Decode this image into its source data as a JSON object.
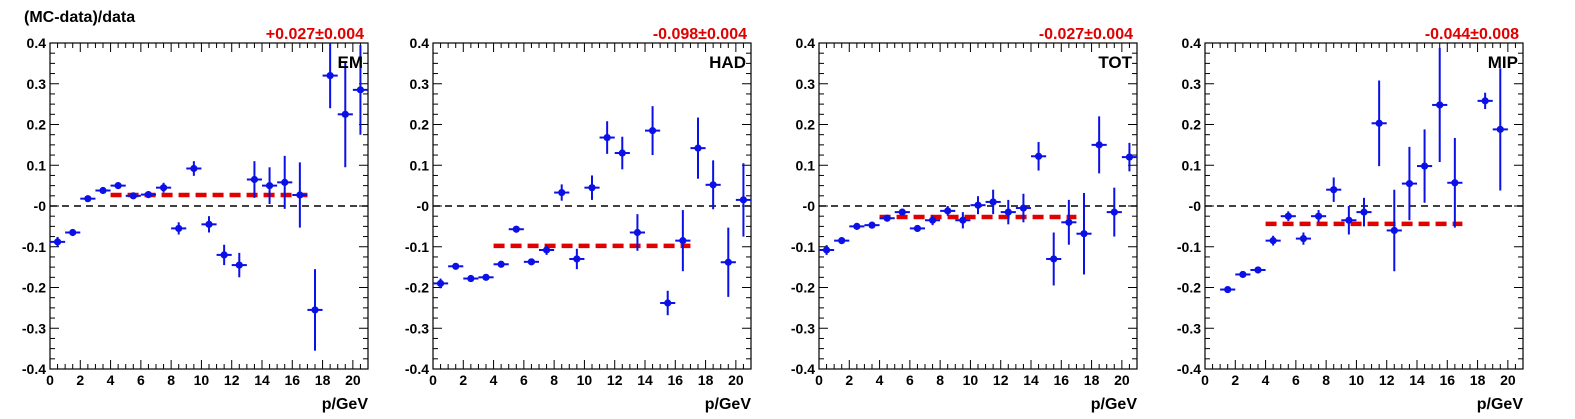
{
  "figure": {
    "y_title": "(MC-data)/data"
  },
  "colors": {
    "points": "#0a10e6",
    "fit": "#e00000",
    "zero_line": "#000000"
  },
  "chart_data": [
    {
      "type": "scatter",
      "panel_label": "EM",
      "fit_label": "+0.027±0.004",
      "fit": {
        "value": 0.027,
        "x_start": 4,
        "x_end": 17
      },
      "xlabel": "p/GeV",
      "xlim": [
        0,
        21
      ],
      "ylim": [
        -0.4,
        0.4
      ],
      "xticks": [
        "0",
        "2",
        "4",
        "6",
        "8",
        "10",
        "12",
        "14",
        "16",
        "18",
        "20"
      ],
      "yticks": [
        "-0.4",
        "-0.3",
        "-0.2",
        "-0.1",
        "-0",
        "0.1",
        "0.2",
        "0.3",
        "0.4"
      ],
      "reference_line": 0,
      "points": [
        {
          "x": 0.5,
          "y": -0.088,
          "err": 0.012
        },
        {
          "x": 1.5,
          "y": -0.065,
          "err": 0.006
        },
        {
          "x": 2.5,
          "y": 0.018,
          "err": 0.006
        },
        {
          "x": 3.5,
          "y": 0.038,
          "err": 0.006
        },
        {
          "x": 4.5,
          "y": 0.05,
          "err": 0.006
        },
        {
          "x": 5.5,
          "y": 0.025,
          "err": 0.008
        },
        {
          "x": 6.5,
          "y": 0.028,
          "err": 0.008
        },
        {
          "x": 7.5,
          "y": 0.045,
          "err": 0.012
        },
        {
          "x": 8.5,
          "y": -0.055,
          "err": 0.015
        },
        {
          "x": 9.5,
          "y": 0.092,
          "err": 0.018
        },
        {
          "x": 10.5,
          "y": -0.045,
          "err": 0.02
        },
        {
          "x": 11.5,
          "y": -0.12,
          "err": 0.025
        },
        {
          "x": 12.5,
          "y": -0.145,
          "err": 0.03
        },
        {
          "x": 13.5,
          "y": 0.065,
          "err": 0.045
        },
        {
          "x": 14.5,
          "y": 0.05,
          "err": 0.045
        },
        {
          "x": 15.5,
          "y": 0.058,
          "err": 0.065
        },
        {
          "x": 16.5,
          "y": 0.027,
          "err": 0.08
        },
        {
          "x": 17.5,
          "y": -0.255,
          "err": 0.1
        },
        {
          "x": 18.5,
          "y": 0.32,
          "err": 0.08
        },
        {
          "x": 19.5,
          "y": 0.225,
          "err": 0.13
        },
        {
          "x": 20.5,
          "y": 0.285,
          "err": 0.11
        }
      ]
    },
    {
      "type": "scatter",
      "panel_label": "HAD",
      "fit_label": "-0.098±0.004",
      "fit": {
        "value": -0.098,
        "x_start": 4,
        "x_end": 17
      },
      "xlabel": "p/GeV",
      "xlim": [
        0,
        21
      ],
      "ylim": [
        -0.4,
        0.4
      ],
      "xticks": [
        "0",
        "2",
        "4",
        "6",
        "8",
        "10",
        "12",
        "14",
        "16",
        "18",
        "20"
      ],
      "yticks": [
        "-0.4",
        "-0.3",
        "-0.2",
        "-0.1",
        "-0",
        "0.1",
        "0.2",
        "0.3",
        "0.4"
      ],
      "reference_line": 0,
      "points": [
        {
          "x": 0.5,
          "y": -0.19,
          "err": 0.012
        },
        {
          "x": 1.5,
          "y": -0.148,
          "err": 0.006
        },
        {
          "x": 2.5,
          "y": -0.178,
          "err": 0.006
        },
        {
          "x": 3.5,
          "y": -0.175,
          "err": 0.006
        },
        {
          "x": 4.5,
          "y": -0.143,
          "err": 0.006
        },
        {
          "x": 5.5,
          "y": -0.057,
          "err": 0.008
        },
        {
          "x": 6.5,
          "y": -0.137,
          "err": 0.008
        },
        {
          "x": 7.5,
          "y": -0.108,
          "err": 0.012
        },
        {
          "x": 8.5,
          "y": 0.033,
          "err": 0.02
        },
        {
          "x": 9.5,
          "y": -0.13,
          "err": 0.025
        },
        {
          "x": 10.5,
          "y": 0.045,
          "err": 0.03
        },
        {
          "x": 11.5,
          "y": 0.168,
          "err": 0.04
        },
        {
          "x": 12.5,
          "y": 0.13,
          "err": 0.04
        },
        {
          "x": 13.5,
          "y": -0.065,
          "err": 0.045
        },
        {
          "x": 14.5,
          "y": 0.185,
          "err": 0.06
        },
        {
          "x": 15.5,
          "y": -0.238,
          "err": 0.03
        },
        {
          "x": 16.5,
          "y": -0.085,
          "err": 0.075
        },
        {
          "x": 17.5,
          "y": 0.142,
          "err": 0.075
        },
        {
          "x": 18.5,
          "y": 0.052,
          "err": 0.06
        },
        {
          "x": 19.5,
          "y": -0.138,
          "err": 0.085
        },
        {
          "x": 20.5,
          "y": 0.015,
          "err": 0.09
        }
      ]
    },
    {
      "type": "scatter",
      "panel_label": "TOT",
      "fit_label": "-0.027±0.004",
      "fit": {
        "value": -0.027,
        "x_start": 4,
        "x_end": 17
      },
      "xlabel": "p/GeV",
      "xlim": [
        0,
        21
      ],
      "ylim": [
        -0.4,
        0.4
      ],
      "xticks": [
        "0",
        "2",
        "4",
        "6",
        "8",
        "10",
        "12",
        "14",
        "16",
        "18",
        "20"
      ],
      "yticks": [
        "-0.4",
        "-0.3",
        "-0.2",
        "-0.1",
        "-0",
        "0.1",
        "0.2",
        "0.3",
        "0.4"
      ],
      "reference_line": 0,
      "points": [
        {
          "x": 0.5,
          "y": -0.108,
          "err": 0.012
        },
        {
          "x": 1.5,
          "y": -0.085,
          "err": 0.006
        },
        {
          "x": 2.5,
          "y": -0.05,
          "err": 0.006
        },
        {
          "x": 3.5,
          "y": -0.047,
          "err": 0.006
        },
        {
          "x": 4.5,
          "y": -0.03,
          "err": 0.006
        },
        {
          "x": 5.5,
          "y": -0.015,
          "err": 0.008
        },
        {
          "x": 6.5,
          "y": -0.055,
          "err": 0.008
        },
        {
          "x": 7.5,
          "y": -0.035,
          "err": 0.012
        },
        {
          "x": 8.5,
          "y": -0.012,
          "err": 0.012
        },
        {
          "x": 9.5,
          "y": -0.035,
          "err": 0.02
        },
        {
          "x": 10.5,
          "y": 0.002,
          "err": 0.022
        },
        {
          "x": 11.5,
          "y": 0.01,
          "err": 0.03
        },
        {
          "x": 12.5,
          "y": -0.015,
          "err": 0.03
        },
        {
          "x": 13.5,
          "y": -0.005,
          "err": 0.035
        },
        {
          "x": 14.5,
          "y": 0.122,
          "err": 0.035
        },
        {
          "x": 15.5,
          "y": -0.13,
          "err": 0.065
        },
        {
          "x": 16.5,
          "y": -0.04,
          "err": 0.055
        },
        {
          "x": 17.5,
          "y": -0.068,
          "err": 0.1
        },
        {
          "x": 18.5,
          "y": 0.15,
          "err": 0.07
        },
        {
          "x": 19.5,
          "y": -0.015,
          "err": 0.06
        },
        {
          "x": 20.5,
          "y": 0.12,
          "err": 0.035
        }
      ]
    },
    {
      "type": "scatter",
      "panel_label": "MIP",
      "fit_label": "-0.044±0.008",
      "fit": {
        "value": -0.044,
        "x_start": 4,
        "x_end": 17
      },
      "xlabel": "p/GeV",
      "xlim": [
        0,
        21
      ],
      "ylim": [
        -0.4,
        0.4
      ],
      "xticks": [
        "0",
        "2",
        "4",
        "6",
        "8",
        "10",
        "12",
        "14",
        "16",
        "18",
        "20"
      ],
      "yticks": [
        "-0.4",
        "-0.3",
        "-0.2",
        "-0.1",
        "-0",
        "0.1",
        "0.2",
        "0.3",
        "0.4"
      ],
      "reference_line": 0,
      "points": [
        {
          "x": 1.5,
          "y": -0.205,
          "err": 0.006
        },
        {
          "x": 2.5,
          "y": -0.168,
          "err": 0.006
        },
        {
          "x": 3.5,
          "y": -0.157,
          "err": 0.006
        },
        {
          "x": 4.5,
          "y": -0.085,
          "err": 0.012
        },
        {
          "x": 5.5,
          "y": -0.025,
          "err": 0.012
        },
        {
          "x": 6.5,
          "y": -0.08,
          "err": 0.015
        },
        {
          "x": 7.5,
          "y": -0.025,
          "err": 0.015
        },
        {
          "x": 8.5,
          "y": 0.04,
          "err": 0.03
        },
        {
          "x": 9.5,
          "y": -0.035,
          "err": 0.035
        },
        {
          "x": 10.5,
          "y": -0.015,
          "err": 0.035
        },
        {
          "x": 11.5,
          "y": 0.203,
          "err": 0.105
        },
        {
          "x": 12.5,
          "y": -0.06,
          "err": 0.1
        },
        {
          "x": 13.5,
          "y": 0.055,
          "err": 0.09
        },
        {
          "x": 14.5,
          "y": 0.098,
          "err": 0.09
        },
        {
          "x": 15.5,
          "y": 0.248,
          "err": 0.14
        },
        {
          "x": 16.5,
          "y": 0.057,
          "err": 0.11
        },
        {
          "x": 18.5,
          "y": 0.258,
          "err": 0.02
        },
        {
          "x": 19.5,
          "y": 0.188,
          "err": 0.15
        }
      ]
    }
  ]
}
